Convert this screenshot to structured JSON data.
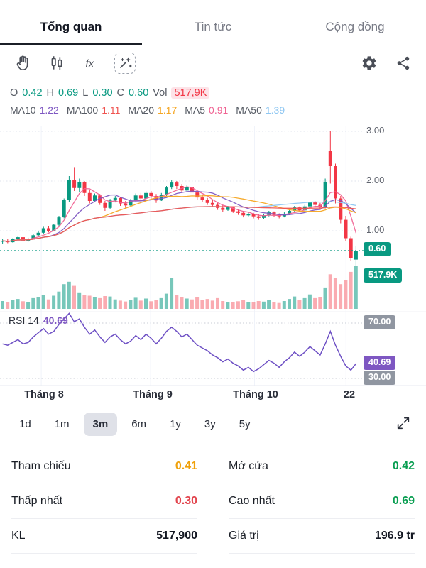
{
  "tabs": [
    {
      "label": "Tổng quan",
      "active": true
    },
    {
      "label": "Tin tức",
      "active": false
    },
    {
      "label": "Cộng đồng",
      "active": false
    }
  ],
  "toolbar": {
    "fx_icon_text": "fx"
  },
  "ohlc": {
    "o_label": "O",
    "o_value": "0.42",
    "h_label": "H",
    "h_value": "0.69",
    "l_label": "L",
    "l_value": "0.30",
    "c_label": "C",
    "c_value": "0.60",
    "vol_label": "Vol",
    "vol_value": "517,9K"
  },
  "ma_legend": [
    {
      "label": "MA10",
      "value": "1.22",
      "color": "#7e57c2"
    },
    {
      "label": "MA100",
      "value": "1.11",
      "color": "#ef5350"
    },
    {
      "label": "MA20",
      "value": "1.17",
      "color": "#f5a623"
    },
    {
      "label": "MA5",
      "value": "0.91",
      "color": "#f06292"
    },
    {
      "label": "MA50",
      "value": "1.39",
      "color": "#8fc7f2"
    }
  ],
  "axis": {
    "price_ticks": [
      "3.00",
      "2.00",
      "1.00"
    ],
    "last_price_badge": "0.60",
    "volume_badge": "517.9K",
    "rsi_upper_badge": "70.00",
    "rsi_value_badge": "40.69",
    "rsi_lower_badge": "30.00",
    "months": [
      "Tháng 8",
      "Tháng 9",
      "Tháng 10",
      "22"
    ]
  },
  "rsi_label": {
    "text": "RSI 14",
    "value": "40.69"
  },
  "ranges": {
    "labels": [
      "1d",
      "1m",
      "3m",
      "6m",
      "1y",
      "3y",
      "5y"
    ],
    "active": "3m"
  },
  "stats": {
    "left": [
      {
        "label": "Tham chiếu",
        "value": "0.41",
        "color": "#f0a10a"
      },
      {
        "label": "Thấp nhất",
        "value": "0.30",
        "color": "#e2444d"
      },
      {
        "label": "KL",
        "value": "517,900",
        "color": "#131722"
      }
    ],
    "right": [
      {
        "label": "Mở cửa",
        "value": "0.42",
        "color": "#0a9e52"
      },
      {
        "label": "Cao nhất",
        "value": "0.69",
        "color": "#0a9e52"
      },
      {
        "label": "Giá trị",
        "value": "196.9 tr",
        "color": "#131722"
      }
    ]
  },
  "chart_data": {
    "type": "candlestick+volume+rsi",
    "title": "3-month daily price chart, RSI(14) sub-panel",
    "price_gridlines": [
      1.0,
      2.0,
      3.0
    ],
    "rsi_gridlines": [
      30,
      70
    ],
    "last_price": 0.6,
    "rsi_last": 40.69,
    "colors": {
      "up": "#089981",
      "down": "#f23645",
      "vol_up": "rgba(8,153,129,0.55)",
      "vol_down": "rgba(242,54,69,0.42)",
      "rsi": "#6d4fc4",
      "grid": "#dfe3ec",
      "rsi_grid": "#c9cdd6"
    },
    "ma": [
      {
        "label": "MA5",
        "window": 5,
        "color": "#f06292"
      },
      {
        "label": "MA10",
        "window": 10,
        "color": "#7e57c2"
      },
      {
        "label": "MA20",
        "window": 20,
        "color": "#f5a623"
      },
      {
        "label": "MA50",
        "window": 50,
        "color": "#8fc7f2"
      },
      {
        "label": "MA100",
        "window": 100,
        "color": "#ef5350"
      }
    ],
    "candles": [
      [
        0.78,
        0.84,
        0.74,
        0.8
      ],
      [
        0.8,
        0.83,
        0.75,
        0.77
      ],
      [
        0.77,
        0.85,
        0.76,
        0.83
      ],
      [
        0.83,
        0.9,
        0.81,
        0.87
      ],
      [
        0.87,
        0.89,
        0.78,
        0.8
      ],
      [
        0.8,
        0.86,
        0.78,
        0.84
      ],
      [
        0.84,
        0.93,
        0.83,
        0.91
      ],
      [
        0.91,
        0.99,
        0.88,
        0.96
      ],
      [
        0.96,
        1.08,
        0.94,
        1.05
      ],
      [
        1.05,
        1.1,
        0.97,
        1.0
      ],
      [
        1.0,
        1.14,
        0.99,
        1.12
      ],
      [
        1.12,
        1.3,
        1.1,
        1.27
      ],
      [
        1.27,
        1.65,
        1.25,
        1.62
      ],
      [
        1.62,
        2.1,
        1.58,
        2.02
      ],
      [
        2.02,
        2.28,
        1.8,
        1.86
      ],
      [
        1.86,
        2.05,
        1.78,
        1.98
      ],
      [
        1.98,
        2.0,
        1.7,
        1.76
      ],
      [
        1.76,
        1.82,
        1.55,
        1.6
      ],
      [
        1.6,
        1.75,
        1.58,
        1.71
      ],
      [
        1.71,
        1.74,
        1.52,
        1.56
      ],
      [
        1.56,
        1.6,
        1.4,
        1.46
      ],
      [
        1.46,
        1.64,
        1.44,
        1.61
      ],
      [
        1.61,
        1.7,
        1.57,
        1.66
      ],
      [
        1.66,
        1.68,
        1.5,
        1.55
      ],
      [
        1.55,
        1.6,
        1.46,
        1.51
      ],
      [
        1.51,
        1.64,
        1.5,
        1.61
      ],
      [
        1.61,
        1.75,
        1.59,
        1.71
      ],
      [
        1.71,
        1.76,
        1.6,
        1.65
      ],
      [
        1.65,
        1.8,
        1.63,
        1.76
      ],
      [
        1.76,
        1.8,
        1.65,
        1.7
      ],
      [
        1.7,
        1.74,
        1.56,
        1.61
      ],
      [
        1.61,
        1.76,
        1.6,
        1.72
      ],
      [
        1.72,
        1.9,
        1.7,
        1.87
      ],
      [
        1.87,
        2.02,
        1.84,
        1.97
      ],
      [
        1.97,
        2.0,
        1.84,
        1.9
      ],
      [
        1.9,
        1.94,
        1.76,
        1.81
      ],
      [
        1.81,
        1.92,
        1.79,
        1.88
      ],
      [
        1.88,
        1.9,
        1.72,
        1.77
      ],
      [
        1.77,
        1.8,
        1.62,
        1.67
      ],
      [
        1.67,
        1.72,
        1.58,
        1.62
      ],
      [
        1.62,
        1.66,
        1.52,
        1.56
      ],
      [
        1.56,
        1.62,
        1.48,
        1.52
      ],
      [
        1.52,
        1.56,
        1.42,
        1.46
      ],
      [
        1.46,
        1.52,
        1.38,
        1.42
      ],
      [
        1.42,
        1.5,
        1.4,
        1.47
      ],
      [
        1.47,
        1.49,
        1.36,
        1.39
      ],
      [
        1.39,
        1.43,
        1.32,
        1.36
      ],
      [
        1.36,
        1.4,
        1.27,
        1.31
      ],
      [
        1.31,
        1.38,
        1.29,
        1.34
      ],
      [
        1.34,
        1.36,
        1.25,
        1.29
      ],
      [
        1.29,
        1.33,
        1.22,
        1.26
      ],
      [
        1.26,
        1.34,
        1.24,
        1.31
      ],
      [
        1.31,
        1.4,
        1.29,
        1.37
      ],
      [
        1.37,
        1.39,
        1.28,
        1.32
      ],
      [
        1.32,
        1.35,
        1.25,
        1.29
      ],
      [
        1.29,
        1.37,
        1.27,
        1.34
      ],
      [
        1.34,
        1.43,
        1.32,
        1.4
      ],
      [
        1.4,
        1.5,
        1.38,
        1.47
      ],
      [
        1.47,
        1.49,
        1.37,
        1.41
      ],
      [
        1.41,
        1.52,
        1.39,
        1.49
      ],
      [
        1.49,
        1.6,
        1.47,
        1.57
      ],
      [
        1.57,
        1.6,
        1.47,
        1.52
      ],
      [
        1.52,
        1.56,
        1.42,
        1.47
      ],
      [
        1.47,
        2.05,
        1.45,
        1.98
      ],
      [
        2.6,
        3.0,
        1.95,
        2.3
      ],
      [
        2.3,
        2.35,
        1.55,
        1.65
      ],
      [
        1.65,
        1.7,
        1.15,
        1.22
      ],
      [
        1.22,
        1.3,
        0.8,
        0.85
      ],
      [
        0.85,
        0.88,
        0.4,
        0.45
      ],
      [
        0.42,
        0.69,
        0.3,
        0.6
      ]
    ],
    "volumes": [
      95,
      80,
      105,
      120,
      92,
      85,
      130,
      140,
      170,
      115,
      160,
      210,
      300,
      330,
      280,
      200,
      170,
      160,
      140,
      130,
      155,
      150,
      115,
      100,
      90,
      110,
      135,
      100,
      125,
      92,
      105,
      130,
      185,
      380,
      170,
      140,
      125,
      115,
      145,
      110,
      120,
      100,
      130,
      95,
      85,
      80,
      92,
      105,
      78,
      82,
      95,
      88,
      110,
      82,
      72,
      95,
      120,
      150,
      105,
      130,
      175,
      130,
      140,
      260,
      420,
      380,
      300,
      350,
      450,
      517.9
    ],
    "rsi": [
      55,
      54,
      56,
      58,
      55,
      56,
      60,
      63,
      66,
      62,
      64,
      69,
      73,
      77,
      71,
      73,
      67,
      62,
      65,
      60,
      56,
      60,
      62,
      58,
      55,
      57,
      61,
      58,
      62,
      59,
      55,
      59,
      64,
      67,
      64,
      60,
      62,
      58,
      54,
      52,
      50,
      47,
      45,
      42,
      44,
      41,
      39,
      36,
      38,
      35,
      37,
      40,
      43,
      41,
      38,
      42,
      45,
      49,
      46,
      49,
      53,
      50,
      47,
      55,
      64,
      54,
      46,
      39,
      36,
      40.69
    ]
  }
}
